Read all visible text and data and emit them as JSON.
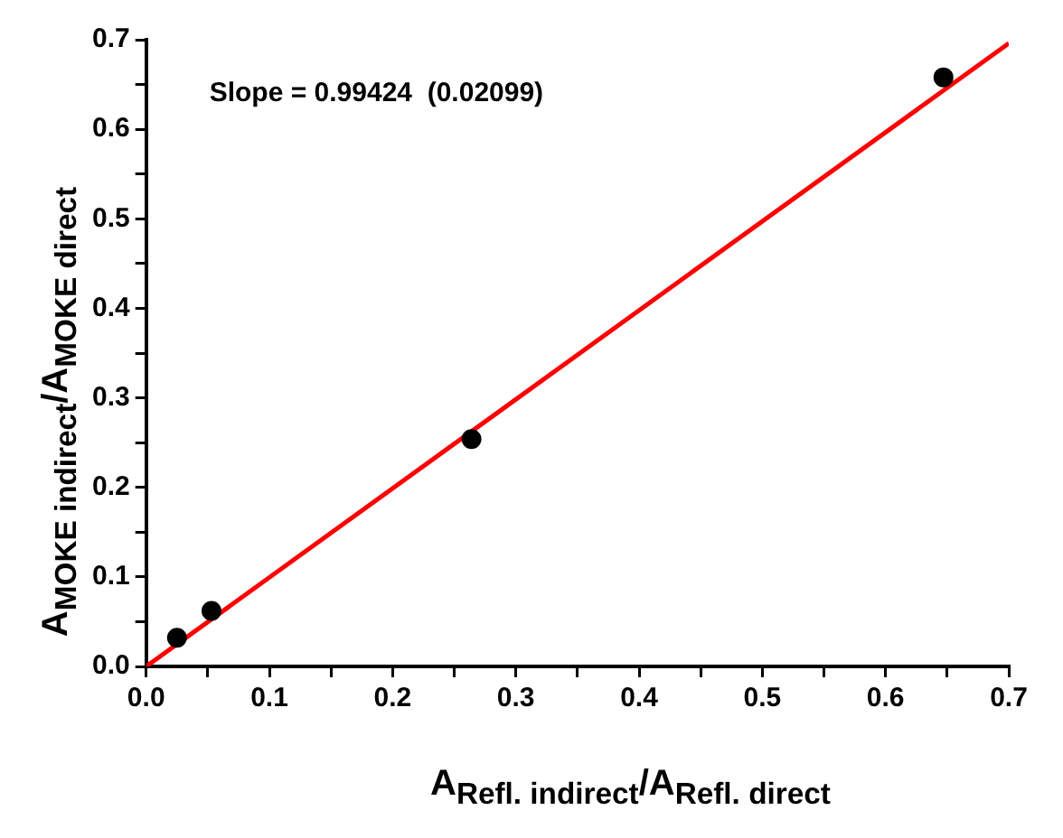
{
  "chart_data": {
    "type": "scatter",
    "xlabel": "A$_{Refl. indirect}$/A$_{Refl. direct}$",
    "ylabel": "A$_{MOKE indirect}$/A$_{MOKE direct}$",
    "annotations": [
      "Slope = 0.99424  (0.02099)"
    ],
    "series": [
      {
        "color": "#000000",
        "x": [
          0.025,
          0.053,
          0.264,
          0.647
        ],
        "values": [
          0.032,
          0.062,
          0.254,
          0.658
        ]
      },
      {
        "type": "line",
        "marker": "none",
        "color": "#ff0000",
        "x": [
          0,
          0.7
        ],
        "values": [
          0,
          0.696
        ]
      }
    ],
    "xlim": [
      0,
      0.7
    ],
    "ylim": [
      0,
      0.7
    ],
    "xticks": [
      {
        "value": 0,
        "label": "0.0"
      },
      {
        "value": 0.05,
        "label": null
      },
      0.1,
      {
        "value": 0.15,
        "label": null
      },
      0.2,
      {
        "value": 0.25,
        "label": null
      },
      0.3,
      {
        "value": 0.35,
        "label": null
      },
      0.4,
      {
        "value": 0.45,
        "label": null
      },
      0.5,
      {
        "value": 0.55,
        "label": null
      },
      0.6,
      {
        "value": 0.65,
        "label": null
      },
      0.7
    ],
    "yticks": [
      {
        "value": 0,
        "label": "0.0"
      },
      {
        "value": 0.05,
        "label": null
      },
      0.1,
      {
        "value": 0.15,
        "label": null
      },
      0.2,
      {
        "value": 0.25,
        "label": null
      },
      0.3,
      {
        "value": 0.35,
        "label": null
      },
      0.4,
      {
        "value": 0.45,
        "label": null
      },
      0.5,
      {
        "value": 0.55,
        "label": null
      },
      0.6,
      {
        "value": 0.65,
        "label": null
      },
      0.7
    ],
    "grid": false,
    "legend": false,
    "marker": "circle"
  }
}
